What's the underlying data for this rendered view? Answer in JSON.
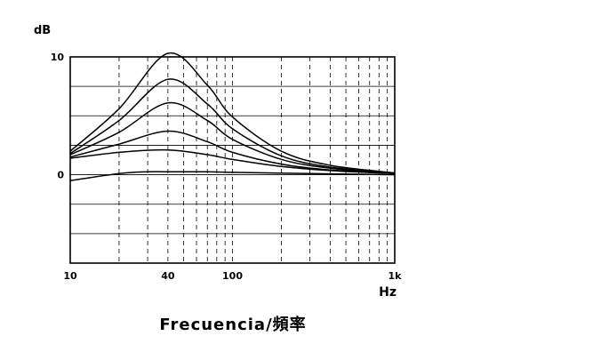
{
  "chart_data": {
    "type": "line",
    "ylabel": "dB",
    "xunit": "Hz",
    "xlabel": "Frecuencia/頻率",
    "x_scale": "log",
    "xlim": [
      10,
      1000
    ],
    "ylim": [
      -7.5,
      10
    ],
    "y_ticks": [
      {
        "value": 10,
        "label": "10"
      },
      {
        "value": 0,
        "label": "0"
      }
    ],
    "x_ticks": [
      {
        "value": 10,
        "label": "10"
      },
      {
        "value": 40,
        "label": "40"
      },
      {
        "value": 100,
        "label": "100"
      },
      {
        "value": 1000,
        "label": "1k"
      }
    ],
    "grid": true,
    "series": [
      {
        "values": [
          [
            10,
            -0.5
          ],
          [
            20,
            0.1
          ],
          [
            30,
            0.25
          ],
          [
            40,
            0.25
          ],
          [
            70,
            0.25
          ],
          [
            100,
            0.2
          ],
          [
            300,
            0.1
          ],
          [
            1000,
            0.0
          ]
        ]
      },
      {
        "values": [
          [
            10,
            1.4
          ],
          [
            20,
            1.9
          ],
          [
            40,
            2.1
          ],
          [
            70,
            1.7
          ],
          [
            100,
            1.3
          ],
          [
            200,
            0.7
          ],
          [
            400,
            0.35
          ],
          [
            1000,
            0.1
          ]
        ]
      },
      {
        "values": [
          [
            10,
            1.5
          ],
          [
            20,
            2.6
          ],
          [
            40,
            3.7
          ],
          [
            70,
            2.8
          ],
          [
            100,
            1.9
          ],
          [
            200,
            0.9
          ],
          [
            400,
            0.4
          ],
          [
            1000,
            0.1
          ]
        ]
      },
      {
        "values": [
          [
            10,
            1.7
          ],
          [
            20,
            3.6
          ],
          [
            40,
            6.1
          ],
          [
            70,
            4.6
          ],
          [
            100,
            3.0
          ],
          [
            200,
            1.3
          ],
          [
            400,
            0.55
          ],
          [
            1000,
            0.1
          ]
        ]
      },
      {
        "values": [
          [
            10,
            1.8
          ],
          [
            20,
            4.6
          ],
          [
            40,
            8.1
          ],
          [
            70,
            6.0
          ],
          [
            100,
            3.9
          ],
          [
            200,
            1.6
          ],
          [
            400,
            0.65
          ],
          [
            1000,
            0.15
          ]
        ]
      },
      {
        "values": [
          [
            10,
            2.0
          ],
          [
            20,
            5.6
          ],
          [
            40,
            10.3
          ],
          [
            70,
            7.6
          ],
          [
            100,
            4.9
          ],
          [
            200,
            2.0
          ],
          [
            400,
            0.8
          ],
          [
            1000,
            0.15
          ]
        ]
      }
    ]
  }
}
